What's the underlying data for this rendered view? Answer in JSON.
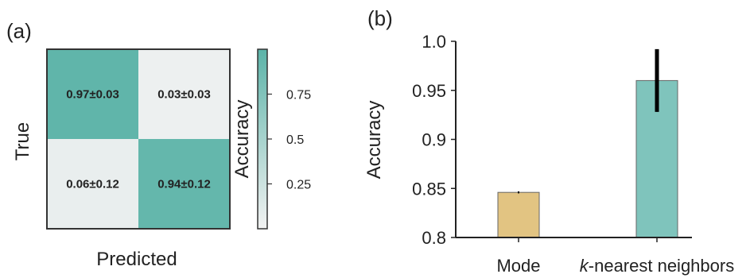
{
  "chart_data": [
    {
      "type": "heatmap",
      "panel_label": "(a)",
      "xlabel": "Predicted",
      "ylabel": "True",
      "values": [
        [
          0.97,
          0.03
        ],
        [
          0.06,
          0.94
        ]
      ],
      "cell_labels": [
        [
          "0.97±0.03",
          "0.03±0.03"
        ],
        [
          "0.06±0.12",
          "0.94±0.12"
        ]
      ],
      "colorbar": {
        "label": "Accuracy",
        "range": [
          0.0,
          1.0
        ],
        "ticks": [
          0.25,
          0.5,
          0.75
        ],
        "tick_labels": [
          "0.25",
          "0.5",
          "0.75"
        ],
        "color_low": "#f2f2f2",
        "color_high": "#5bb3a8"
      }
    },
    {
      "type": "bar",
      "panel_label": "(b)",
      "categories": [
        "Mode",
        "k-nearest neighbors"
      ],
      "values": [
        0.846,
        0.96
      ],
      "errors": [
        0.001,
        0.032
      ],
      "colors": [
        "#e2c482",
        "#7fc4bc"
      ],
      "xlabel": "",
      "ylabel": "Accuracy",
      "ylim": [
        0.8,
        1.0
      ],
      "yticks": [
        0.8,
        0.85,
        0.9,
        0.95,
        1.0
      ],
      "ytick_labels": [
        "0.8",
        "0.85",
        "0.9",
        "0.95",
        "1.0"
      ]
    }
  ]
}
